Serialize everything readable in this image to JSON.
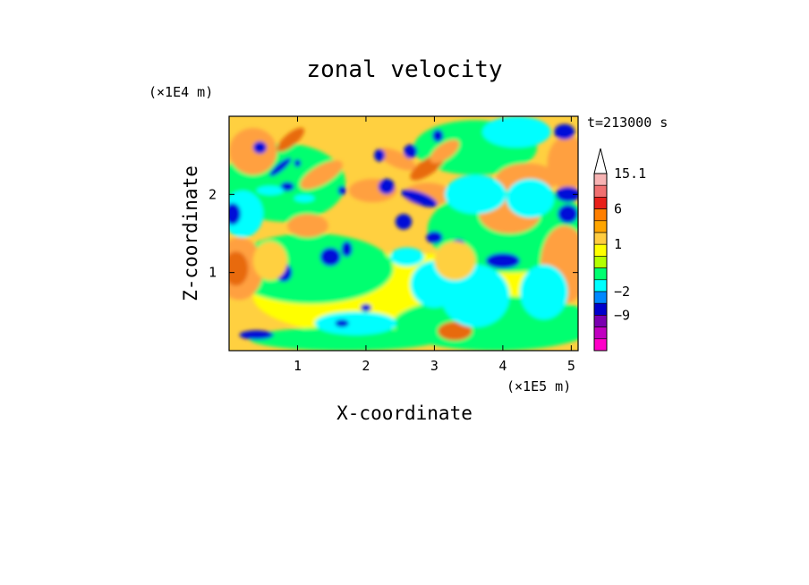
{
  "chart_data": {
    "type": "heatmap",
    "title": "zonal velocity",
    "xlabel": "X-coordinate",
    "ylabel": "Z-coordinate",
    "x_unit": "(×1E5 m)",
    "y_unit": "(×1E4 m)",
    "time_label": "t=213000 s",
    "xlim": [
      0,
      5.1
    ],
    "ylim": [
      0,
      3.0
    ],
    "x_ticks": [
      "1",
      "2",
      "3",
      "4",
      "5"
    ],
    "x_tick_values": [
      1,
      2,
      3,
      4,
      5
    ],
    "y_ticks": [
      "1",
      "2"
    ],
    "y_tick_values": [
      1,
      2
    ],
    "colorbar": {
      "labels": [
        "15.1",
        "6",
        "1",
        "−2",
        "−9"
      ],
      "label_values": [
        15.1,
        6,
        1,
        -2,
        -9
      ],
      "levels_top_to_bottom": [
        15.1,
        12,
        9,
        6,
        4,
        2,
        1,
        0.5,
        0,
        -1,
        -2,
        -5,
        -9,
        -12,
        -15
      ],
      "colors_top_to_bottom": [
        "#ffffff",
        "#f7b3b3",
        "#f07070",
        "#e8201a",
        "#ff7f00",
        "#ffa500",
        "#ffcc40",
        "#ffff00",
        "#b4ff00",
        "#00ff70",
        "#00ffff",
        "#0088ff",
        "#0000cc",
        "#7a00b0",
        "#c000c0",
        "#ff00c8"
      ],
      "extend": "max"
    },
    "palette": {
      "strong_pos": "#e86a10",
      "pos": "#ffa040",
      "weak_pos": "#ffd040",
      "near_zero": "#ffff00",
      "weak_neg": "#00ff70",
      "neg": "#00ffff",
      "strong_neg": "#0010d8"
    }
  }
}
